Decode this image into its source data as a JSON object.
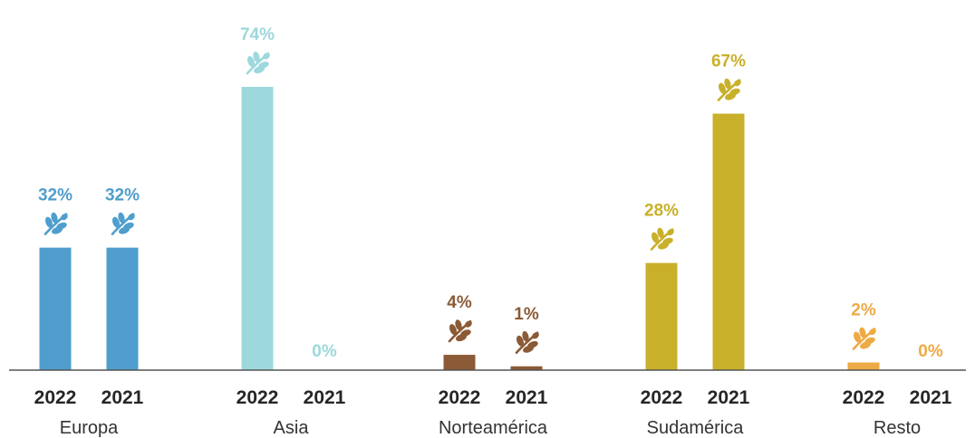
{
  "chart_data": {
    "type": "bar",
    "title": "",
    "unit": "%",
    "ylim": [
      0,
      80
    ],
    "grid": false,
    "legend": "none",
    "groups": [
      {
        "name": "Europa",
        "color": "#4f9ecd",
        "bars": [
          {
            "year": "2022",
            "value": 32,
            "label": "32%"
          },
          {
            "year": "2021",
            "value": 32,
            "label": "32%"
          }
        ]
      },
      {
        "name": "Asia",
        "color": "#9dd8dc",
        "bars": [
          {
            "year": "2022",
            "value": 74,
            "label": "74%"
          },
          {
            "year": "2021",
            "value": 0,
            "label": "0%"
          }
        ]
      },
      {
        "name": "Norteamérica",
        "color": "#8b5a36",
        "bars": [
          {
            "year": "2022",
            "value": 4,
            "label": "4%"
          },
          {
            "year": "2021",
            "value": 1,
            "label": "1%"
          }
        ]
      },
      {
        "name": "Sudamérica",
        "color": "#c9b02b",
        "bars": [
          {
            "year": "2022",
            "value": 28,
            "label": "28%"
          },
          {
            "year": "2021",
            "value": 67,
            "label": "67%"
          }
        ]
      },
      {
        "name": "Resto",
        "color": "#eeaa45",
        "bars": [
          {
            "year": "2022",
            "value": 2,
            "label": "2%"
          },
          {
            "year": "2021",
            "value": 0,
            "label": "0%"
          }
        ]
      }
    ],
    "icon": "leaf-sprig-icon"
  }
}
